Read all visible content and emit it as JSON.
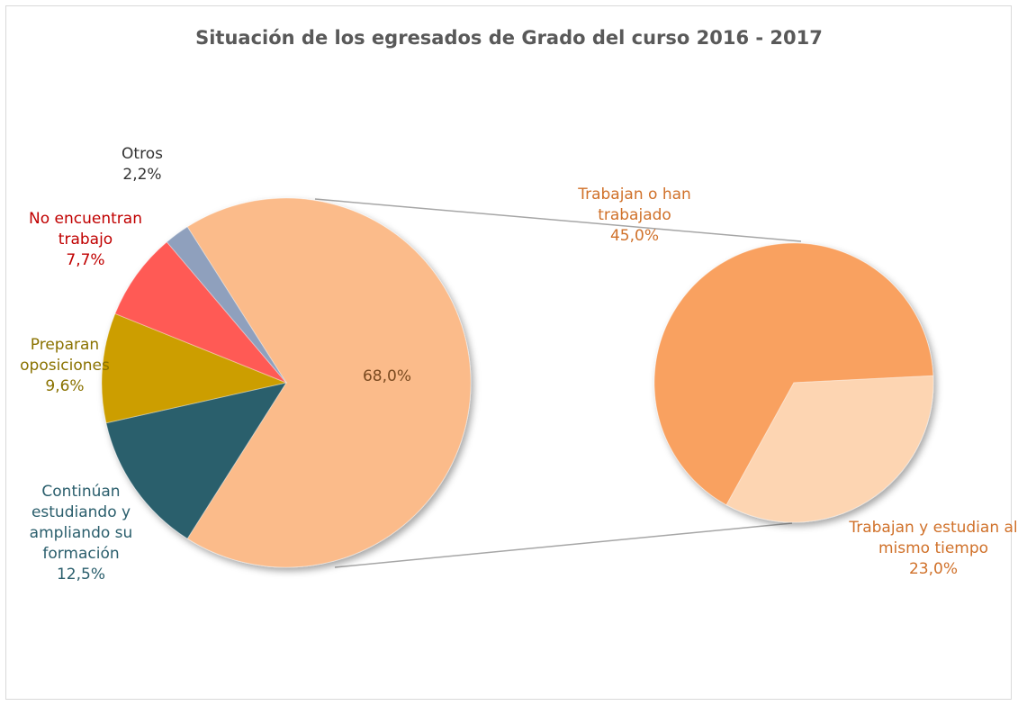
{
  "chart_data": {
    "type": "pie-of-pie",
    "title": "Situación de los egresados de Grado del curso 2016 - 2017",
    "categories": [
      null,
      "Continúan estudiando y ampliando su formación",
      "Preparan oposiciones",
      "No encuentran trabajo",
      "Otros"
    ],
    "values": [
      68,
      12.5,
      9.6,
      7.7,
      2.2
    ],
    "value_labels": [
      "68,0%",
      "12,5%",
      "9,6%",
      "7,7%",
      "2,2%"
    ],
    "colors": [
      "#fbbb8a",
      "#2a5e6c",
      "#cc9e00",
      "#ff5a55",
      "#8fa0bd"
    ],
    "label_colors": [
      "#7a4a20",
      "#2a5e6c",
      "#8a7200",
      "#c00000",
      "#333333"
    ],
    "secondary": {
      "categories": [
        "Trabajan o han trabajado",
        "Trabajan y estudian al mismo tiempo"
      ],
      "values": [
        45,
        23
      ],
      "value_labels": [
        "45,0%",
        "23,0%"
      ],
      "colors": [
        "#f9a160",
        "#fdd5b2"
      ],
      "label_colors": [
        "#d0712a",
        "#d0712a"
      ]
    }
  }
}
